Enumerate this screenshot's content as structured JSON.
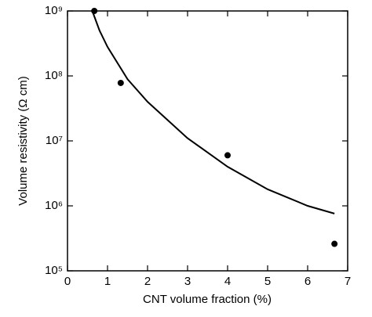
{
  "chart_data": {
    "type": "scatter",
    "xlabel": "CNT volume fraction (%)",
    "ylabel": "Volume resistivity (Ω cm)",
    "xlim": [
      0,
      7
    ],
    "xticks": [
      0,
      1,
      2,
      3,
      4,
      5,
      6,
      7
    ],
    "ylim": [
      100000,
      1000000000
    ],
    "yticks": [
      {
        "value": 100000,
        "label": "10⁵"
      },
      {
        "value": 1000000,
        "label": "10⁶"
      },
      {
        "value": 10000000,
        "label": "10⁷"
      },
      {
        "value": 100000000,
        "label": "10⁸"
      },
      {
        "value": 1000000000,
        "label": "10⁹"
      }
    ],
    "log_y": true,
    "series": [
      {
        "kind": "points",
        "color": "#000000",
        "x": [
          0.67,
          1.33,
          4.0,
          6.67
        ],
        "values": [
          1000000000,
          78000000,
          6000000,
          260000
        ]
      },
      {
        "kind": "line",
        "color": "#000000",
        "x": [
          0.62,
          0.8,
          1,
          1.5,
          2,
          3,
          4,
          5,
          6,
          6.67
        ],
        "values": [
          1000000000,
          500000000,
          280000000,
          89000000,
          40000000,
          11000000,
          4000000,
          1800000,
          1000000,
          760000
        ]
      }
    ]
  }
}
